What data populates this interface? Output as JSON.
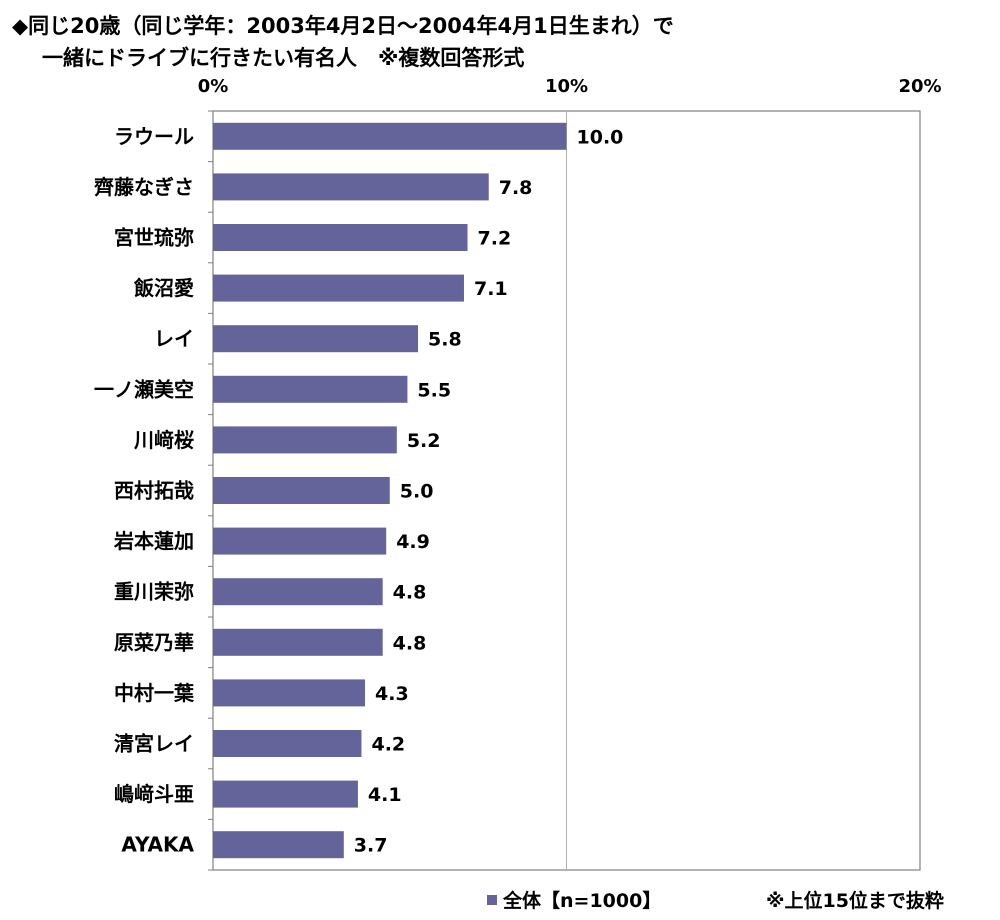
{
  "title": {
    "line1": "◆同じ20歳（同じ学年：2003年4月2日～2004年4月1日生まれ）で",
    "line2": "一緒にドライブに行きたい有名人　※複数回答形式"
  },
  "chart_data": {
    "type": "bar",
    "orientation": "horizontal",
    "categories": [
      "ラウール",
      "齊藤なぎさ",
      "宮世琉弥",
      "飯沼愛",
      "レイ",
      "一ノ瀬美空",
      "川﨑桜",
      "西村拓哉",
      "岩本蓮加",
      "重川茉弥",
      "原菜乃華",
      "中村一葉",
      "清宮レイ",
      "嶋﨑斗亜",
      "AYAKA"
    ],
    "series": [
      {
        "name": "全体【n=1000】",
        "values": [
          10.0,
          7.8,
          7.2,
          7.1,
          5.8,
          5.5,
          5.2,
          5.0,
          4.9,
          4.8,
          4.8,
          4.3,
          4.2,
          4.1,
          3.7
        ]
      }
    ],
    "data_labels": [
      "10.0",
      "7.8",
      "7.2",
      "7.1",
      "5.8",
      "5.5",
      "5.2",
      "5.0",
      "4.9",
      "4.8",
      "4.8",
      "4.3",
      "4.2",
      "4.1",
      "3.7"
    ],
    "x_ticks": [
      "0%",
      "10%",
      "20%"
    ],
    "xlim": [
      0,
      20
    ],
    "grid": "vertical line at 10%",
    "legend_position": "bottom",
    "bar_color": "#64649a"
  },
  "footer": {
    "legend_label": "全体【n=1000】",
    "note": "※上位15位まで抜粋"
  }
}
